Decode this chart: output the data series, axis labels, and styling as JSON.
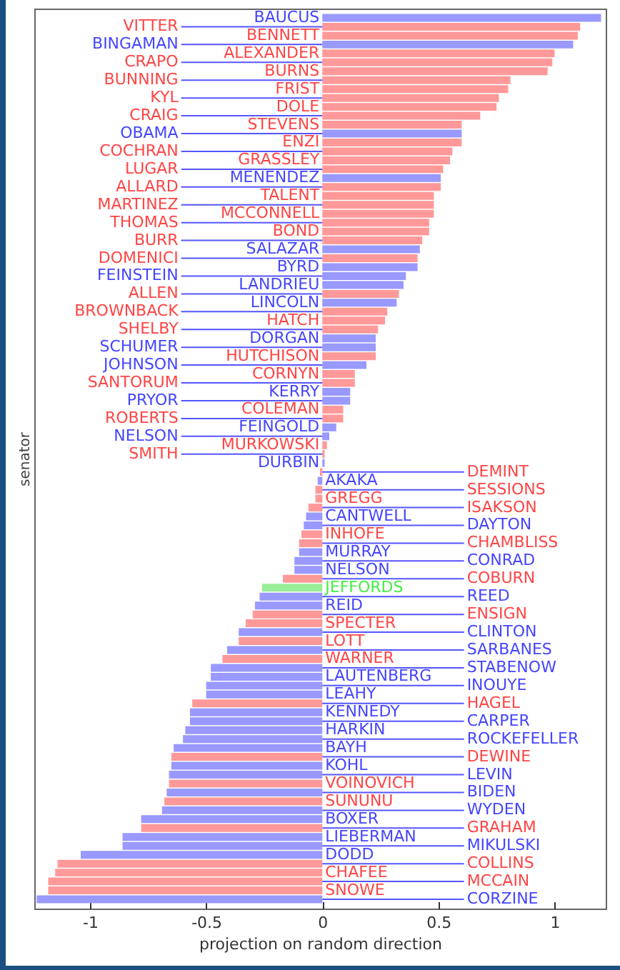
{
  "chart_data": {
    "type": "bar",
    "orientation": "horizontal",
    "xlabel": "projection on random direction",
    "ylabel": "senator",
    "tick_labels": "x",
    "grid": false,
    "xlim": [
      -1.24,
      1.22
    ],
    "xticks": [
      -1,
      -0.5,
      0,
      0.5,
      1
    ],
    "categories": [
      "BAUCUS",
      "VITTER",
      "BENNETT",
      "BINGAMAN",
      "ALEXANDER",
      "CRAPO",
      "BURNS",
      "BUNNING",
      "FRIST",
      "KYL",
      "DOLE",
      "CRAIG",
      "STEVENS",
      "OBAMA",
      "ENZI",
      "COCHRAN",
      "GRASSLEY",
      "LUGAR",
      "MENENDEZ",
      "ALLARD",
      "TALENT",
      "MARTINEZ",
      "MCCONNELL",
      "THOMAS",
      "BOND",
      "BURR",
      "SALAZAR",
      "DOMENICI",
      "BYRD",
      "FEINSTEIN",
      "LANDRIEU",
      "ALLEN",
      "LINCOLN",
      "BROWNBACK",
      "HATCH",
      "SHELBY",
      "DORGAN",
      "SCHUMER",
      "HUTCHISON",
      "JOHNSON",
      "CORNYN",
      "SANTORUM",
      "KERRY",
      "PRYOR",
      "COLEMAN",
      "ROBERTS",
      "FEINGOLD",
      "NELSON",
      "MURKOWSKI",
      "SMITH",
      "DURBIN",
      "DEMINT",
      "AKAKA",
      "SESSIONS",
      "GREGG",
      "ISAKSON",
      "CANTWELL",
      "DAYTON",
      "INHOFE",
      "CHAMBLISS",
      "MURRAY",
      "CONRAD",
      "NELSON",
      "COBURN",
      "JEFFORDS",
      "REED",
      "REID",
      "ENSIGN",
      "SPECTER",
      "CLINTON",
      "LOTT",
      "SARBANES",
      "WARNER",
      "STABENOW",
      "LAUTENBERG",
      "INOUYE",
      "LEAHY",
      "HAGEL",
      "KENNEDY",
      "CARPER",
      "HARKIN",
      "ROCKEFELLER",
      "BAYH",
      "DEWINE",
      "KOHL",
      "LEVIN",
      "VOINOVICH",
      "BIDEN",
      "SUNUNU",
      "WYDEN",
      "BOXER",
      "GRAHAM",
      "LIEBERMAN",
      "MIKULSKI",
      "DODD",
      "COLLINS",
      "CHAFEE",
      "MCCAIN",
      "SNOWE",
      "CORZINE"
    ],
    "values": [
      1.2,
      1.11,
      1.1,
      1.08,
      1.0,
      0.99,
      0.97,
      0.81,
      0.8,
      0.76,
      0.75,
      0.68,
      0.6,
      0.6,
      0.6,
      0.56,
      0.55,
      0.52,
      0.51,
      0.51,
      0.48,
      0.48,
      0.48,
      0.46,
      0.46,
      0.43,
      0.42,
      0.41,
      0.41,
      0.36,
      0.35,
      0.33,
      0.32,
      0.28,
      0.27,
      0.24,
      0.23,
      0.23,
      0.23,
      0.19,
      0.14,
      0.14,
      0.12,
      0.12,
      0.09,
      0.09,
      0.06,
      0.03,
      0.02,
      0.01,
      0.01,
      -0.01,
      -0.02,
      -0.03,
      -0.03,
      -0.06,
      -0.07,
      -0.08,
      -0.09,
      -0.1,
      -0.1,
      -0.12,
      -0.12,
      -0.17,
      -0.26,
      -0.27,
      -0.29,
      -0.3,
      -0.33,
      -0.36,
      -0.36,
      -0.41,
      -0.43,
      -0.48,
      -0.48,
      -0.5,
      -0.5,
      -0.56,
      -0.57,
      -0.57,
      -0.59,
      -0.6,
      -0.64,
      -0.65,
      -0.65,
      -0.66,
      -0.66,
      -0.67,
      -0.68,
      -0.69,
      -0.78,
      -0.78,
      -0.86,
      -0.86,
      -1.04,
      -1.14,
      -1.15,
      -1.18,
      -1.18,
      -1.23
    ],
    "colors": [
      "#9999ff",
      "#ff9999",
      "#ff9999",
      "#9999ff",
      "#ff9999",
      "#ff9999",
      "#ff9999",
      "#ff9999",
      "#ff9999",
      "#ff9999",
      "#ff9999",
      "#ff9999",
      "#ff9999",
      "#9999ff",
      "#ff9999",
      "#ff9999",
      "#ff9999",
      "#ff9999",
      "#9999ff",
      "#ff9999",
      "#ff9999",
      "#ff9999",
      "#ff9999",
      "#ff9999",
      "#ff9999",
      "#ff9999",
      "#9999ff",
      "#ff9999",
      "#9999ff",
      "#9999ff",
      "#9999ff",
      "#ff9999",
      "#9999ff",
      "#ff9999",
      "#ff9999",
      "#ff9999",
      "#9999ff",
      "#9999ff",
      "#ff9999",
      "#9999ff",
      "#ff9999",
      "#ff9999",
      "#9999ff",
      "#9999ff",
      "#ff9999",
      "#ff9999",
      "#9999ff",
      "#9999ff",
      "#ff9999",
      "#ff9999",
      "#9999ff",
      "#ff9999",
      "#9999ff",
      "#ff9999",
      "#ff9999",
      "#ff9999",
      "#9999ff",
      "#9999ff",
      "#ff9999",
      "#ff9999",
      "#9999ff",
      "#9999ff",
      "#9999ff",
      "#ff9999",
      "#99ee99",
      "#9999ff",
      "#9999ff",
      "#ff9999",
      "#ff9999",
      "#9999ff",
      "#ff9999",
      "#9999ff",
      "#ff9999",
      "#9999ff",
      "#9999ff",
      "#9999ff",
      "#9999ff",
      "#ff9999",
      "#9999ff",
      "#9999ff",
      "#9999ff",
      "#9999ff",
      "#9999ff",
      "#ff9999",
      "#9999ff",
      "#9999ff",
      "#ff9999",
      "#9999ff",
      "#ff9999",
      "#9999ff",
      "#9999ff",
      "#ff9999",
      "#9999ff",
      "#9999ff",
      "#9999ff",
      "#ff9999",
      "#ff9999",
      "#ff9999",
      "#ff9999",
      "#9999ff"
    ]
  }
}
